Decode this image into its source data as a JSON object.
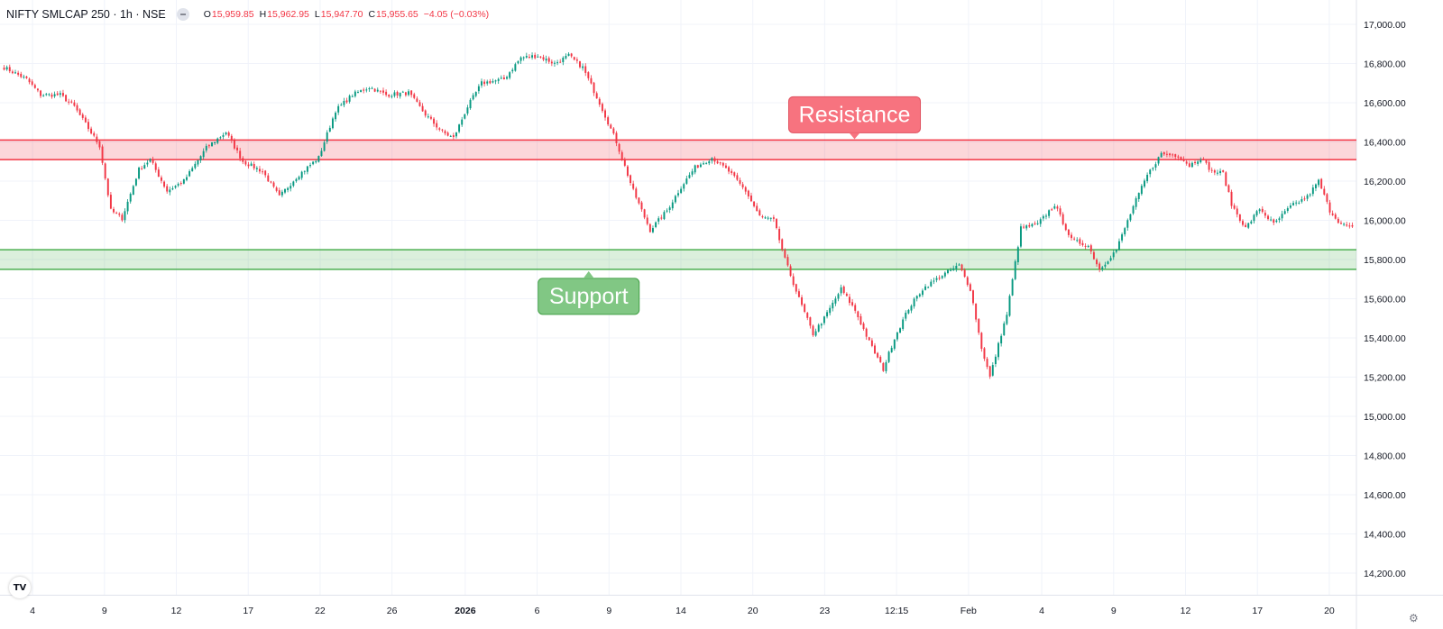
{
  "header": {
    "symbol": "NIFTY SMLCAP 250 · 1h · NSE",
    "o_key": "O",
    "o_val": "15,959.85",
    "h_key": "H",
    "h_val": "15,962.95",
    "l_key": "L",
    "l_val": "15,947.70",
    "c_key": "C",
    "c_val": "15,955.65",
    "change": "−4.05 (−0.03%)"
  },
  "icons": {
    "visibility": "eye-icon",
    "logo": "tradingview-logo",
    "settings": "gear-icon"
  },
  "logo_text": "TV",
  "settings_glyph": "⚙",
  "colors": {
    "up": "#089981",
    "down": "#f23645",
    "resistance": "#f23645",
    "support": "#4caf50"
  },
  "chart_data": {
    "type": "candlestick",
    "y_range": [
      14100,
      17050
    ],
    "y_ticks": [
      "17,000.00",
      "16,800.00",
      "16,600.00",
      "16,400.00",
      "16,200.00",
      "16,000.00",
      "15,800.00",
      "15,600.00",
      "15,400.00",
      "15,200.00",
      "15,000.00",
      "14,800.00",
      "14,600.00",
      "14,400.00",
      "14,200.00"
    ],
    "x_ticks": [
      {
        "label": "4",
        "pos": 0.024
      },
      {
        "label": "9",
        "pos": 0.077
      },
      {
        "label": "12",
        "pos": 0.13
      },
      {
        "label": "17",
        "pos": 0.183
      },
      {
        "label": "22",
        "pos": 0.236
      },
      {
        "label": "26",
        "pos": 0.289
      },
      {
        "label": "2026",
        "pos": 0.343,
        "bold": true
      },
      {
        "label": "6",
        "pos": 0.396
      },
      {
        "label": "9",
        "pos": 0.449
      },
      {
        "label": "14",
        "pos": 0.502
      },
      {
        "label": "20",
        "pos": 0.555
      },
      {
        "label": "23",
        "pos": 0.608
      },
      {
        "label": "12:15",
        "pos": 0.661
      },
      {
        "label": "Feb",
        "pos": 0.714
      },
      {
        "label": "4",
        "pos": 0.768
      },
      {
        "label": "9",
        "pos": 0.821
      },
      {
        "label": "12",
        "pos": 0.874
      },
      {
        "label": "17",
        "pos": 0.927
      },
      {
        "label": "20",
        "pos": 0.98
      }
    ],
    "zones": [
      {
        "name": "resistance",
        "label": "Resistance",
        "low": 16310,
        "high": 16410,
        "label_pos": 0.63
      },
      {
        "name": "support",
        "label": "Support",
        "low": 15750,
        "high": 15850,
        "label_pos": 0.434
      }
    ],
    "anchors": [
      [
        0,
        16780
      ],
      [
        8,
        16720
      ],
      [
        13,
        16640
      ],
      [
        20,
        16640
      ],
      [
        25,
        16580
      ],
      [
        34,
        16380
      ],
      [
        38,
        16050
      ],
      [
        42,
        16010
      ],
      [
        48,
        16260
      ],
      [
        52,
        16310
      ],
      [
        58,
        16150
      ],
      [
        64,
        16200
      ],
      [
        72,
        16370
      ],
      [
        79,
        16450
      ],
      [
        85,
        16300
      ],
      [
        92,
        16250
      ],
      [
        98,
        16120
      ],
      [
        104,
        16220
      ],
      [
        112,
        16320
      ],
      [
        118,
        16560
      ],
      [
        124,
        16640
      ],
      [
        130,
        16680
      ],
      [
        136,
        16640
      ],
      [
        144,
        16650
      ],
      [
        150,
        16540
      ],
      [
        156,
        16450
      ],
      [
        160,
        16420
      ],
      [
        165,
        16580
      ],
      [
        170,
        16700
      ],
      [
        178,
        16720
      ],
      [
        184,
        16830
      ],
      [
        190,
        16840
      ],
      [
        196,
        16800
      ],
      [
        201,
        16840
      ],
      [
        206,
        16780
      ],
      [
        212,
        16600
      ],
      [
        218,
        16400
      ],
      [
        224,
        16150
      ],
      [
        230,
        15950
      ],
      [
        236,
        16050
      ],
      [
        241,
        16170
      ],
      [
        246,
        16270
      ],
      [
        252,
        16320
      ],
      [
        258,
        16250
      ],
      [
        264,
        16150
      ],
      [
        269,
        16020
      ],
      [
        274,
        16000
      ],
      [
        278,
        15800
      ],
      [
        283,
        15600
      ],
      [
        288,
        15420
      ],
      [
        292,
        15500
      ],
      [
        298,
        15650
      ],
      [
        303,
        15540
      ],
      [
        308,
        15380
      ],
      [
        313,
        15240
      ],
      [
        317,
        15400
      ],
      [
        322,
        15550
      ],
      [
        327,
        15650
      ],
      [
        334,
        15720
      ],
      [
        340,
        15770
      ],
      [
        344,
        15650
      ],
      [
        348,
        15350
      ],
      [
        351,
        15200
      ],
      [
        355,
        15420
      ],
      [
        357,
        15520
      ],
      [
        362,
        15960
      ],
      [
        368,
        15980
      ],
      [
        374,
        16080
      ],
      [
        380,
        15900
      ],
      [
        386,
        15870
      ],
      [
        390,
        15750
      ],
      [
        396,
        15850
      ],
      [
        402,
        16070
      ],
      [
        407,
        16230
      ],
      [
        412,
        16340
      ],
      [
        418,
        16330
      ],
      [
        422,
        16280
      ],
      [
        426,
        16320
      ],
      [
        430,
        16250
      ],
      [
        434,
        16240
      ],
      [
        437,
        16080
      ],
      [
        442,
        15960
      ],
      [
        447,
        16060
      ],
      [
        452,
        15980
      ],
      [
        458,
        16070
      ],
      [
        464,
        16120
      ],
      [
        468,
        16200
      ],
      [
        472,
        16050
      ],
      [
        476,
        15980
      ],
      [
        480,
        15960
      ]
    ]
  }
}
